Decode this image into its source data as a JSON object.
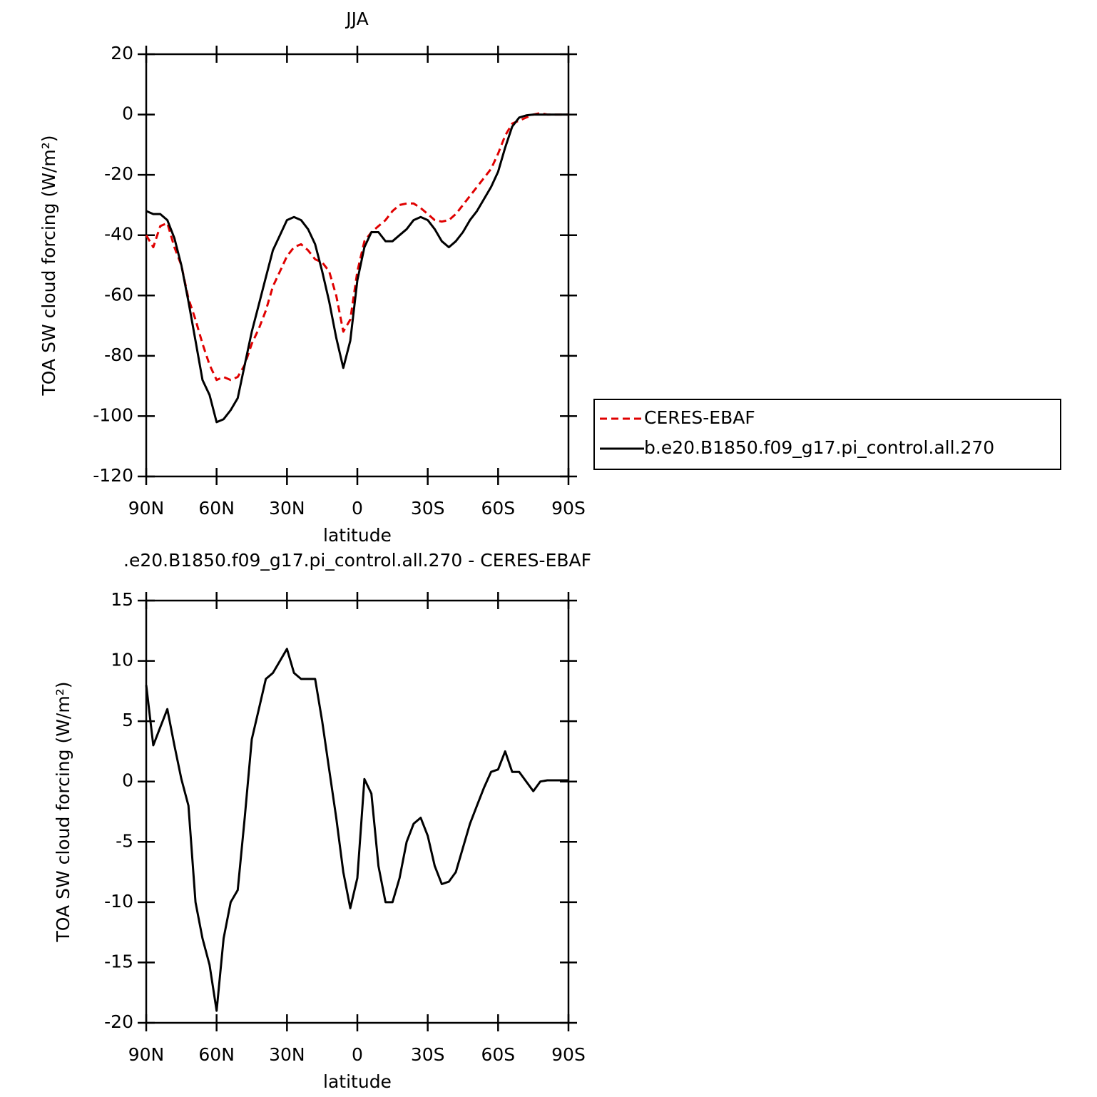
{
  "chart_data": [
    {
      "type": "line",
      "title": "JJA",
      "xlabel": "latitude",
      "ylabel": "TOA SW cloud forcing (W/m²)",
      "x": [
        90,
        87,
        84,
        81,
        78,
        75,
        72,
        69,
        66,
        63,
        60,
        57,
        54,
        51,
        48,
        45,
        42,
        39,
        36,
        33,
        30,
        27,
        24,
        21,
        18,
        15,
        12,
        9,
        6,
        3,
        0,
        -3,
        -6,
        -9,
        -12,
        -15,
        -18,
        -21,
        -24,
        -27,
        -30,
        -33,
        -36,
        -39,
        -42,
        -45,
        -48,
        -51,
        -54,
        -57,
        -60,
        -63,
        -66,
        -69,
        -72,
        -75,
        -78,
        -81,
        -84,
        -87,
        -90
      ],
      "xlim": [
        90,
        -90
      ],
      "xticks": [
        {
          "value": 90,
          "label": "90N"
        },
        {
          "value": 60,
          "label": "60N"
        },
        {
          "value": 30,
          "label": "30N"
        },
        0,
        {
          "value": -30,
          "label": "30S"
        },
        {
          "value": -60,
          "label": "60S"
        },
        {
          "value": -90,
          "label": "90S"
        }
      ],
      "ylim": [
        -120,
        20
      ],
      "yticks": [
        20,
        0,
        -20,
        -40,
        -60,
        -80,
        -100,
        -120
      ],
      "legend": "right",
      "series": [
        {
          "name": "CERES-EBAF",
          "color": "#e00000",
          "style": "dashed",
          "values": [
            -40,
            -44,
            -37,
            -36,
            -44,
            -50,
            -61,
            -68,
            -76,
            -83,
            -88,
            -87,
            -88,
            -87,
            -83,
            -76,
            -71,
            -65,
            -57,
            -52,
            -47,
            -44,
            -43,
            -45,
            -48,
            -49,
            -52,
            -60,
            -72,
            -68,
            -52,
            -42,
            -39,
            -37,
            -35,
            -32,
            -30,
            -29.5,
            -29.5,
            -31,
            -33,
            -35,
            -35.5,
            -35,
            -33,
            -30,
            -27,
            -24,
            -21,
            -18,
            -13,
            -7,
            -3,
            -2,
            -1,
            0,
            0.5,
            0,
            0,
            0,
            0
          ]
        },
        {
          "name": "b.e20.B1850.f09_g17.pi_control.all.270",
          "color": "#000000",
          "style": "solid",
          "values": [
            -32,
            -33,
            -33,
            -35,
            -41,
            -50,
            -62,
            -75,
            -88,
            -93,
            -102,
            -101,
            -98,
            -94,
            -83,
            -72,
            -63,
            -54,
            -45,
            -40,
            -35,
            -34,
            -35,
            -38,
            -43,
            -52,
            -62,
            -74,
            -84,
            -75,
            -55,
            -44,
            -39,
            -39,
            -42,
            -42,
            -40,
            -38,
            -35,
            -34,
            -35,
            -38,
            -42,
            -44,
            -42,
            -39,
            -35,
            -32,
            -28,
            -24,
            -19,
            -11,
            -4,
            -1,
            -0.3,
            0,
            0,
            0,
            0,
            0,
            0
          ]
        }
      ]
    },
    {
      "type": "line",
      "title": ".e20.B1850.f09_g17.pi_control.all.270 - CERES-EBAF",
      "xlabel": "latitude",
      "ylabel": "TOA SW cloud forcing (W/m²)",
      "x": [
        90,
        87,
        84,
        81,
        78,
        75,
        72,
        69,
        66,
        63,
        60,
        57,
        54,
        51,
        48,
        45,
        42,
        39,
        36,
        33,
        30,
        27,
        24,
        21,
        18,
        15,
        12,
        9,
        6,
        3,
        0,
        -3,
        -6,
        -9,
        -12,
        -15,
        -18,
        -21,
        -24,
        -27,
        -30,
        -33,
        -36,
        -39,
        -42,
        -45,
        -48,
        -51,
        -54,
        -57,
        -60,
        -63,
        -66,
        -69,
        -72,
        -75,
        -78,
        -81,
        -84,
        -87,
        -90
      ],
      "xlim": [
        90,
        -90
      ],
      "xticks": [
        {
          "value": 90,
          "label": "90N"
        },
        {
          "value": 60,
          "label": "60N"
        },
        {
          "value": 30,
          "label": "30N"
        },
        0,
        {
          "value": -30,
          "label": "30S"
        },
        {
          "value": -60,
          "label": "60S"
        },
        {
          "value": -90,
          "label": "90S"
        }
      ],
      "ylim": [
        -20,
        15
      ],
      "yticks": [
        15,
        10,
        5,
        0,
        -5,
        -10,
        -15,
        -20
      ],
      "color": "#000000",
      "values": [
        8,
        3,
        4.5,
        6,
        3,
        0.2,
        -2,
        -10,
        -13,
        -15.2,
        -19,
        -13,
        -10,
        -9,
        -3,
        3.5,
        6,
        8.5,
        9,
        10,
        11,
        9,
        8.5,
        8.5,
        8.5,
        5,
        1,
        -3,
        -7.5,
        -10.5,
        -8,
        0.2,
        -1,
        -7,
        -10,
        -10,
        -8,
        -5,
        -3.5,
        -3,
        -4.5,
        -7,
        -8.5,
        -8.3,
        -7.5,
        -5.5,
        -3.5,
        -2,
        -0.5,
        0.8,
        1,
        2.5,
        0.8,
        0.8,
        0,
        -0.8,
        0,
        0.1,
        0.1,
        0.1,
        0.1
      ]
    }
  ]
}
